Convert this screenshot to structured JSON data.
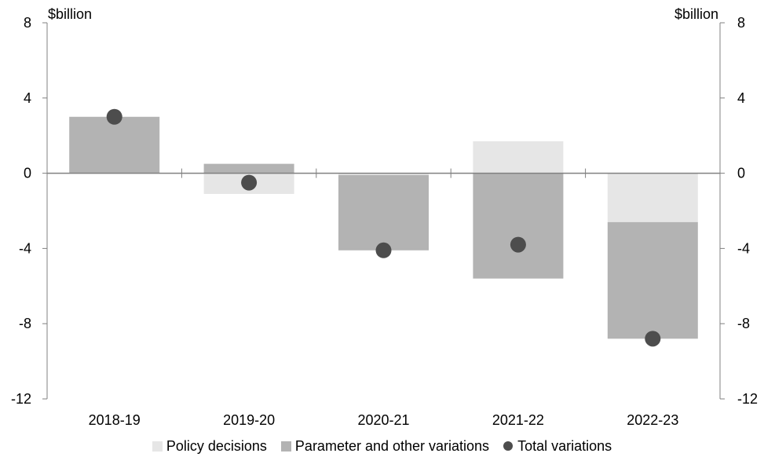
{
  "chart_data": {
    "type": "bar",
    "categories": [
      "2018-19",
      "2019-20",
      "2020-21",
      "2021-22",
      "2022-23"
    ],
    "series": [
      {
        "name": "Policy decisions",
        "kind": "stacked-bar",
        "values": [
          0.0,
          -1.1,
          -0.1,
          1.7,
          -2.6
        ],
        "color": "#e6e6e6"
      },
      {
        "name": "Parameter and other variations",
        "kind": "stacked-bar",
        "values": [
          3.0,
          0.5,
          -4.0,
          -5.6,
          -6.2
        ],
        "color": "#b3b3b3"
      },
      {
        "name": "Total variations",
        "kind": "marker",
        "values": [
          3.0,
          -0.5,
          -4.1,
          -3.8,
          -8.8
        ],
        "color": "#4d4d4d"
      }
    ],
    "ylabel_left": "$billion",
    "ylabel_right": "$billion",
    "ylim": [
      -12,
      8
    ],
    "yticks": [
      "8",
      "4",
      "0",
      "-4",
      "-8",
      "-12"
    ],
    "ytick_values": [
      8,
      4,
      0,
      -4,
      -8,
      -12
    ],
    "grid": false,
    "legend_position": "bottom"
  }
}
